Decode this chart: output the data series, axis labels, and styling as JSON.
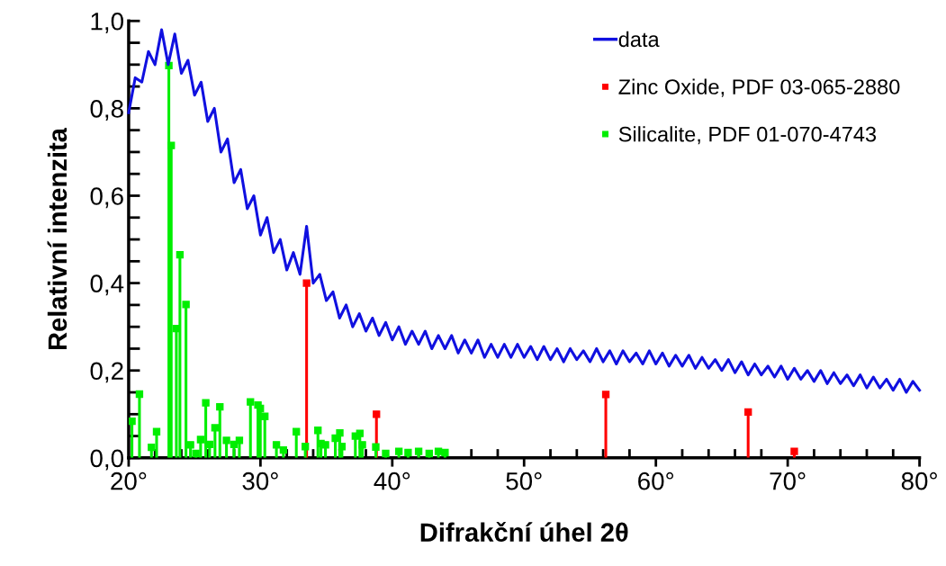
{
  "chart_data": {
    "type": "line",
    "xlabel": "Difrakční úhel 2θ",
    "ylabel": "Relativní intenzita",
    "xlim": [
      20,
      80
    ],
    "ylim": [
      0,
      1.0
    ],
    "xticks": [
      {
        "value": 20,
        "label": "20°"
      },
      {
        "value": 22,
        "label": null
      },
      {
        "value": 24,
        "label": null
      },
      {
        "value": 26,
        "label": null
      },
      {
        "value": 28,
        "label": null
      },
      {
        "value": 30,
        "label": "30°"
      },
      {
        "value": 32,
        "label": null
      },
      {
        "value": 34,
        "label": null
      },
      {
        "value": 36,
        "label": null
      },
      {
        "value": 38,
        "label": null
      },
      {
        "value": 40,
        "label": "40°"
      },
      {
        "value": 42,
        "label": null
      },
      {
        "value": 44,
        "label": null
      },
      {
        "value": 46,
        "label": null
      },
      {
        "value": 48,
        "label": null
      },
      {
        "value": 50,
        "label": "50°"
      },
      {
        "value": 52,
        "label": null
      },
      {
        "value": 54,
        "label": null
      },
      {
        "value": 56,
        "label": null
      },
      {
        "value": 58,
        "label": null
      },
      {
        "value": 60,
        "label": "60°"
      },
      {
        "value": 62,
        "label": null
      },
      {
        "value": 64,
        "label": null
      },
      {
        "value": 66,
        "label": null
      },
      {
        "value": 68,
        "label": null
      },
      {
        "value": 70,
        "label": "70°"
      },
      {
        "value": 72,
        "label": null
      },
      {
        "value": 74,
        "label": null
      },
      {
        "value": 76,
        "label": null
      },
      {
        "value": 78,
        "label": null
      },
      {
        "value": 80,
        "label": "80°"
      }
    ],
    "yticks": [
      {
        "value": 0,
        "label": "0,0"
      },
      {
        "value": 0.05,
        "label": null
      },
      {
        "value": 0.1,
        "label": null
      },
      {
        "value": 0.15,
        "label": null
      },
      {
        "value": 0.2,
        "label": "0,2"
      },
      {
        "value": 0.25,
        "label": null
      },
      {
        "value": 0.3,
        "label": null
      },
      {
        "value": 0.35,
        "label": null
      },
      {
        "value": 0.4,
        "label": "0,4"
      },
      {
        "value": 0.45,
        "label": null
      },
      {
        "value": 0.5,
        "label": null
      },
      {
        "value": 0.55,
        "label": null
      },
      {
        "value": 0.6,
        "label": "0,6"
      },
      {
        "value": 0.65,
        "label": null
      },
      {
        "value": 0.7,
        "label": null
      },
      {
        "value": 0.75,
        "label": null
      },
      {
        "value": 0.8,
        "label": "0,8"
      },
      {
        "value": 0.85,
        "label": null
      },
      {
        "value": 0.9,
        "label": null
      },
      {
        "value": 0.95,
        "label": null
      },
      {
        "value": 1.0,
        "label": "1,0"
      }
    ],
    "grid": false,
    "legend": "top right",
    "series": [
      {
        "name": "data",
        "color": "#1010e0",
        "marker": "none",
        "line_style": "solid",
        "x": [
          20.0,
          20.5,
          21.0,
          21.5,
          22.0,
          22.5,
          23.0,
          23.5,
          24.0,
          24.5,
          25.0,
          25.5,
          26.0,
          26.5,
          27.0,
          27.5,
          28.0,
          28.5,
          29.0,
          29.5,
          30.0,
          30.5,
          31.0,
          31.5,
          32.0,
          32.5,
          33.0,
          33.5,
          34.0,
          34.5,
          35.0,
          35.5,
          36.0,
          36.5,
          37.0,
          37.5,
          38.0,
          38.5,
          39.0,
          39.5,
          40.0,
          40.5,
          41.0,
          41.5,
          42.0,
          42.5,
          43.0,
          43.5,
          44.0,
          44.5,
          45.0,
          45.5,
          46.0,
          46.5,
          47.0,
          47.5,
          48.0,
          48.5,
          49.0,
          49.5,
          50.0,
          50.5,
          51.0,
          51.5,
          52.0,
          52.5,
          53.0,
          53.5,
          54.0,
          54.5,
          55.0,
          55.5,
          56.0,
          56.5,
          57.0,
          57.5,
          58.0,
          58.5,
          59.0,
          59.5,
          60.0,
          60.5,
          61.0,
          61.5,
          62.0,
          62.5,
          63.0,
          63.5,
          64.0,
          64.5,
          65.0,
          65.5,
          66.0,
          66.5,
          67.0,
          67.5,
          68.0,
          68.5,
          69.0,
          69.5,
          70.0,
          70.5,
          71.0,
          71.5,
          72.0,
          72.5,
          73.0,
          73.5,
          74.0,
          74.5,
          75.0,
          75.5,
          76.0,
          76.5,
          77.0,
          77.5,
          78.0,
          78.5,
          79.0,
          79.5,
          80.0
        ],
        "values": [
          0.79,
          0.87,
          0.86,
          0.93,
          0.9,
          0.98,
          0.9,
          0.97,
          0.88,
          0.91,
          0.83,
          0.86,
          0.77,
          0.8,
          0.7,
          0.73,
          0.63,
          0.66,
          0.57,
          0.6,
          0.51,
          0.55,
          0.47,
          0.5,
          0.43,
          0.47,
          0.42,
          0.53,
          0.4,
          0.42,
          0.36,
          0.38,
          0.32,
          0.35,
          0.3,
          0.33,
          0.29,
          0.32,
          0.28,
          0.31,
          0.27,
          0.3,
          0.26,
          0.29,
          0.26,
          0.29,
          0.25,
          0.28,
          0.25,
          0.28,
          0.24,
          0.27,
          0.24,
          0.27,
          0.23,
          0.26,
          0.23,
          0.26,
          0.23,
          0.26,
          0.23,
          0.255,
          0.225,
          0.255,
          0.225,
          0.25,
          0.22,
          0.25,
          0.225,
          0.245,
          0.22,
          0.25,
          0.22,
          0.245,
          0.215,
          0.245,
          0.22,
          0.24,
          0.215,
          0.245,
          0.215,
          0.24,
          0.21,
          0.235,
          0.21,
          0.235,
          0.205,
          0.23,
          0.205,
          0.225,
          0.2,
          0.225,
          0.195,
          0.22,
          0.19,
          0.215,
          0.19,
          0.21,
          0.185,
          0.21,
          0.18,
          0.205,
          0.18,
          0.2,
          0.175,
          0.2,
          0.17,
          0.195,
          0.17,
          0.19,
          0.165,
          0.19,
          0.16,
          0.185,
          0.16,
          0.18,
          0.155,
          0.18,
          0.15,
          0.175,
          0.155
        ]
      },
      {
        "name": "Zinc Oxide, PDF 03-065-2880",
        "type": "lollipop",
        "color": "#ff0000",
        "marker": "square",
        "x": [
          33.5,
          38.8,
          56.2,
          67.0,
          70.5
        ],
        "values": [
          0.4,
          0.1,
          0.145,
          0.105,
          0.015
        ]
      },
      {
        "name": "Silicalite, PDF 01-070-4743",
        "type": "lollipop",
        "color": "#00ee00",
        "marker": "square",
        "x": [
          20.25,
          20.82,
          21.73,
          22.12,
          23.05,
          23.23,
          23.62,
          23.89,
          24.35,
          24.69,
          25.1,
          25.46,
          25.85,
          26.14,
          26.55,
          26.92,
          27.42,
          27.99,
          28.4,
          29.24,
          29.81,
          29.99,
          30.33,
          31.21,
          31.74,
          32.72,
          33.4,
          34.36,
          34.59,
          34.93,
          35.68,
          36.02,
          36.18,
          37.2,
          37.54,
          37.73,
          38.75,
          39.5,
          40.5,
          41.2,
          42.0,
          42.8,
          43.5,
          44.0
        ],
        "values": [
          0.084,
          0.146,
          0.024,
          0.06,
          0.898,
          0.715,
          0.296,
          0.465,
          0.351,
          0.03,
          0.01,
          0.042,
          0.126,
          0.031,
          0.069,
          0.117,
          0.04,
          0.031,
          0.04,
          0.128,
          0.121,
          0.113,
          0.095,
          0.03,
          0.018,
          0.06,
          0.026,
          0.063,
          0.033,
          0.03,
          0.045,
          0.057,
          0.026,
          0.05,
          0.056,
          0.03,
          0.025,
          0.01,
          0.015,
          0.012,
          0.015,
          0.01,
          0.015,
          0.012
        ]
      }
    ]
  }
}
